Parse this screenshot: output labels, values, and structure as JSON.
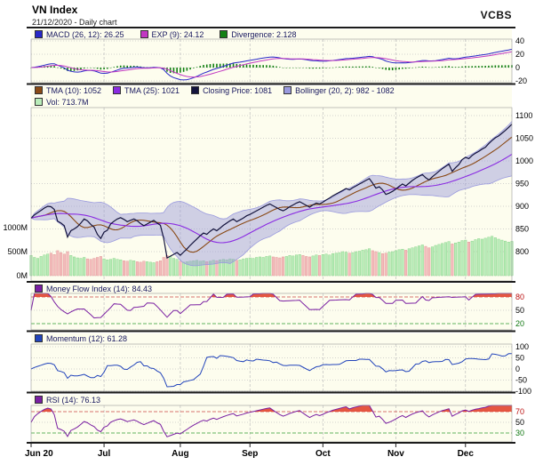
{
  "header": {
    "title": "VN Index",
    "subtitle": "21/12/2020 - Daily chart",
    "brand": "VCBS"
  },
  "legends": {
    "macd": [
      {
        "label": "MACD (26, 12): 26.25",
        "color": "macd_line"
      },
      {
        "label": "EXP (9): 24.12",
        "color": "exp_line"
      },
      {
        "label": "Divergence: 2.128",
        "color": "divergence"
      }
    ],
    "main1": [
      {
        "label": "TMA (10): 1052",
        "color": "tma10"
      },
      {
        "label": "TMA (25): 1021",
        "color": "tma25"
      },
      {
        "label": "Closing Price: 1081",
        "color": "close"
      },
      {
        "label": "Bollinger (20, 2): 982 - 1082",
        "color": "bollinger"
      }
    ],
    "main2": [
      {
        "label": "Vol: 713.7M",
        "color": "volume_up"
      }
    ],
    "mfi": [
      {
        "label": "Money Flow Index (14): 84.43",
        "color": "mfi"
      }
    ],
    "momentum": [
      {
        "label": "Momentum (12): 61.28",
        "color": "momentum"
      }
    ],
    "rsi": [
      {
        "label": "RSI (14): 76.13",
        "color": "rsi"
      }
    ]
  },
  "axes": {
    "macd": {
      "ticks": [
        {
          "v": 40
        },
        {
          "v": 20
        },
        {
          "v": 0
        },
        {
          "v": -20
        }
      ]
    },
    "price": {
      "ticks": [
        1100,
        1050,
        1000,
        950,
        900,
        850,
        800
      ]
    },
    "volume": {
      "ticks": [
        {
          "label": "1000M",
          "v": 1000
        },
        {
          "label": "500M",
          "v": 500
        },
        {
          "label": "0M",
          "v": 0
        }
      ]
    },
    "mfi": {
      "ticks": [
        {
          "v": 80,
          "color": "red"
        },
        {
          "v": 50
        },
        {
          "v": 20,
          "color": "green"
        }
      ]
    },
    "momentum": {
      "ticks": [
        100,
        50,
        0,
        -50,
        -100
      ]
    },
    "rsi": {
      "ticks": [
        {
          "v": 70,
          "color": "red"
        },
        {
          "v": 50
        },
        {
          "v": 30,
          "color": "green"
        }
      ]
    }
  },
  "colors": {
    "macd_line": "#2929c8",
    "exp_line": "#c238c2",
    "divergence": "#128012",
    "tma10": "#8a4a16",
    "tma25": "#8a2be2",
    "close": "#13133c",
    "bollinger": "#9a9ade",
    "volume_up": "#b9ecb9",
    "volume_down": "#f3bcbc",
    "mfi": "#7a1fa2",
    "momentum": "#2244bb",
    "rsi": "#7a1fa2",
    "overbought_fill": "#e2442e",
    "background": "#fdfdee",
    "grid": "#c5c5c5",
    "red_level": "#cc3333",
    "green_level": "#1e8a1e"
  },
  "chart_data": {
    "type": "line",
    "title": "VN Index",
    "subtitle": "21/12/2020 - Daily chart",
    "x_axis_labels": [
      "Jun 20",
      "Jul",
      "Aug",
      "Sep",
      "Oct",
      "Nov",
      "Dec"
    ],
    "months": [
      {
        "label": "Jun 20",
        "index": 0
      },
      {
        "label": "Jul",
        "index": 22
      },
      {
        "label": "Aug",
        "index": 45
      },
      {
        "label": "Sep",
        "index": 66
      },
      {
        "label": "Oct",
        "index": 88
      },
      {
        "label": "Nov",
        "index": 110
      },
      {
        "label": "Dec",
        "index": 131
      }
    ],
    "price_axis": {
      "min": 800,
      "max": 1100,
      "step": 50
    },
    "volume_axis": {
      "ticks_millions": [
        1000,
        500,
        0
      ]
    },
    "close": [
      874,
      881,
      886,
      891,
      896,
      900,
      899,
      893,
      867,
      863,
      857,
      832,
      846,
      850,
      855,
      863,
      872,
      868,
      860,
      854,
      838,
      829,
      843,
      847,
      861,
      867,
      872,
      875,
      871,
      866,
      869,
      872,
      868,
      862,
      857,
      861,
      865,
      869,
      863,
      858,
      829,
      786,
      790,
      794,
      798,
      792,
      799,
      806,
      814,
      821,
      828,
      835,
      841,
      838,
      845,
      850,
      846,
      852,
      858,
      863,
      868,
      872,
      866,
      870,
      874,
      879,
      882,
      886,
      890,
      894,
      898,
      902,
      905,
      901,
      897,
      893,
      890,
      894,
      899,
      903,
      907,
      910,
      906,
      902,
      898,
      903,
      907,
      905,
      909,
      914,
      918,
      923,
      927,
      931,
      935,
      939,
      936,
      941,
      945,
      949,
      953,
      957,
      961,
      951,
      940,
      943,
      936,
      926,
      929,
      933,
      938,
      944,
      949,
      945,
      951,
      957,
      962,
      966,
      970,
      963,
      958,
      965,
      971,
      977,
      983,
      988,
      993,
      977,
      985,
      992,
      1003,
      1008,
      1005,
      1012,
      1017,
      1021,
      1026,
      1030,
      1038,
      1045,
      1051,
      1055,
      1061,
      1067,
      1074,
      1081
    ],
    "volume_millions": [
      420,
      380,
      360,
      400,
      430,
      450,
      470,
      440,
      520,
      480,
      450,
      500,
      420,
      390,
      370,
      360,
      380,
      350,
      340,
      360,
      380,
      400,
      350,
      330,
      340,
      360,
      340,
      330,
      310,
      300,
      320,
      310,
      290,
      280,
      300,
      290,
      280,
      270,
      290,
      310,
      380,
      420,
      400,
      360,
      340,
      300,
      280,
      290,
      300,
      310,
      320,
      300,
      310,
      290,
      300,
      320,
      310,
      330,
      340,
      330,
      350,
      340,
      320,
      330,
      350,
      360,
      370,
      360,
      380,
      390,
      380,
      400,
      410,
      390,
      380,
      370,
      390,
      400,
      420,
      410,
      430,
      440,
      420,
      400,
      390,
      410,
      430,
      420,
      440,
      450,
      430,
      460,
      470,
      480,
      500,
      490,
      470,
      480,
      500,
      510,
      530,
      540,
      560,
      520,
      500,
      480,
      460,
      470,
      490,
      500,
      520,
      540,
      550,
      530,
      560,
      580,
      600,
      620,
      640,
      610,
      580,
      600,
      630,
      650,
      670,
      690,
      710,
      660,
      680,
      700,
      730,
      740,
      700,
      720,
      750,
      770,
      760,
      780,
      800,
      820,
      790,
      760,
      740,
      720,
      700,
      713.7
    ],
    "indicator_readings": {
      "macd_26_12": 26.25,
      "exp_9": 24.12,
      "divergence": 2.128,
      "tma_10": 1052,
      "tma_25": 1021,
      "closing_price": 1081,
      "bollinger_20_2": "982 - 1082",
      "volume": "713.7M",
      "money_flow_index_14": 84.43,
      "momentum_12": 61.28,
      "rsi_14": 76.13,
      "overbought_levels": {
        "mfi": 80,
        "rsi": 70
      },
      "oversold_levels": {
        "mfi": 20,
        "rsi": 30
      }
    }
  }
}
